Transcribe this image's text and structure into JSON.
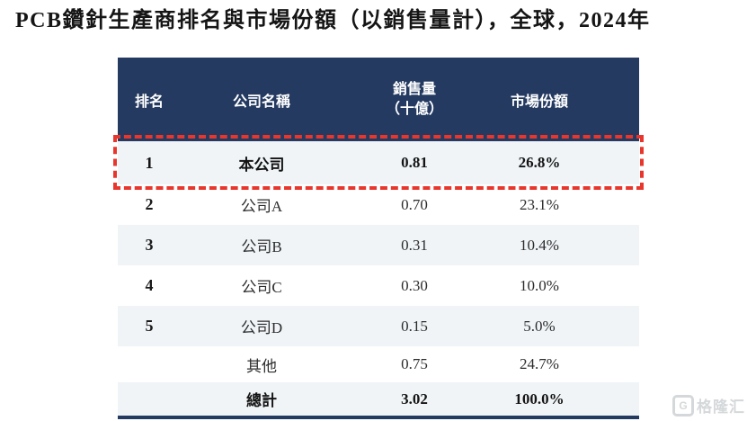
{
  "title": "PCB鑽針生產商排名與市場份額（以銷售量計），全球，2024年",
  "table": {
    "headers": {
      "rank": "排名",
      "company": "公司名稱",
      "sales_line1": "銷售量",
      "sales_line2": "（十億）",
      "share": "市場份額"
    },
    "rows": [
      {
        "rank": "1",
        "company": "本公司",
        "sales": "0.81",
        "share": "26.8%",
        "bold": true,
        "shaded": true,
        "highlighted": true
      },
      {
        "rank": "2",
        "company": "公司A",
        "sales": "0.70",
        "share": "23.1%",
        "bold": false,
        "shaded": false,
        "highlighted": false
      },
      {
        "rank": "3",
        "company": "公司B",
        "sales": "0.31",
        "share": "10.4%",
        "bold": false,
        "shaded": true,
        "highlighted": false
      },
      {
        "rank": "4",
        "company": "公司C",
        "sales": "0.30",
        "share": "10.0%",
        "bold": false,
        "shaded": false,
        "highlighted": false
      },
      {
        "rank": "5",
        "company": "公司D",
        "sales": "0.15",
        "share": "5.0%",
        "bold": false,
        "shaded": true,
        "highlighted": false
      },
      {
        "rank": "",
        "company": "其他",
        "sales": "0.75",
        "share": "24.7%",
        "bold": false,
        "shaded": false,
        "highlighted": false
      },
      {
        "rank": "",
        "company": "總計",
        "sales": "3.02",
        "share": "100.0%",
        "bold": true,
        "shaded": true,
        "highlighted": false
      }
    ]
  },
  "watermark": {
    "logo": "G",
    "text": "格隆汇"
  },
  "colors": {
    "header_bg": "#243a61",
    "row_shaded_bg": "#f0f4f7",
    "highlight_border": "#e8362d",
    "title_text": "#151515",
    "watermark": "#d5d8da"
  },
  "chart_data": {
    "type": "table",
    "title": "PCB鑽針生產商排名與市場份額（以銷售量計），全球，2024年",
    "columns": [
      "排名",
      "公司名稱",
      "銷售量（十億）",
      "市場份額"
    ],
    "rows": [
      [
        "1",
        "本公司",
        0.81,
        "26.8%"
      ],
      [
        "2",
        "公司A",
        0.7,
        "23.1%"
      ],
      [
        "3",
        "公司B",
        0.31,
        "10.4%"
      ],
      [
        "4",
        "公司C",
        0.3,
        "10.0%"
      ],
      [
        "5",
        "公司D",
        0.15,
        "5.0%"
      ],
      [
        "",
        "其他",
        0.75,
        "24.7%"
      ],
      [
        "",
        "總計",
        3.02,
        "100.0%"
      ]
    ],
    "highlighted_row": "本公司",
    "notes": "first data row outlined with red dashed border"
  }
}
